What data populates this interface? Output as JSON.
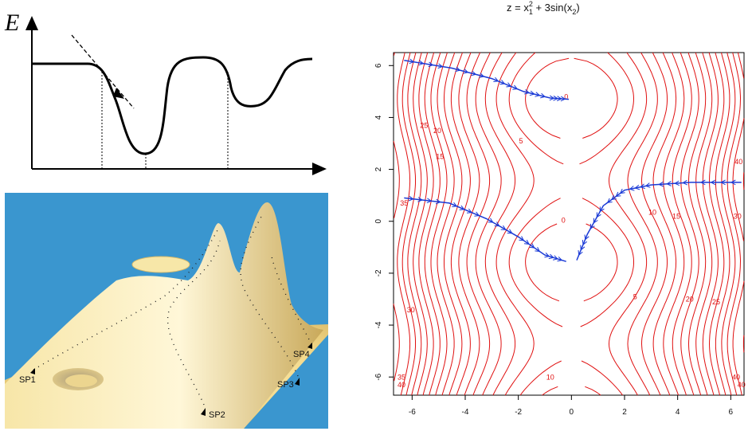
{
  "energy_diagram": {
    "axis_label": "E"
  },
  "landscape_diagram": {
    "saddle_points": [
      "SP1",
      "SP2",
      "SP3",
      "SP4"
    ],
    "colors": {
      "background": "#3a96cf",
      "surface": "#f3d98a"
    }
  },
  "contour_plot": {
    "title_main": "z = x",
    "title_sub1": "1",
    "title_sup": "2",
    "title_mid": " + 3sin(x",
    "title_sub2": "2",
    "title_end": ")",
    "x_ticks": [
      "-6",
      "-4",
      "-2",
      "0",
      "2",
      "4",
      "6"
    ],
    "y_ticks": [
      "6",
      "4",
      "2",
      "0",
      "-2",
      "-4",
      "-6"
    ],
    "contour_labels": [
      "0",
      "0",
      "5",
      "5",
      "10",
      "10",
      "15",
      "15",
      "20",
      "20",
      "25",
      "25",
      "30",
      "30",
      "35",
      "35",
      "40",
      "40",
      "40",
      "40"
    ],
    "colors": {
      "contours": "#e01010",
      "paths": "#1a3ad6"
    }
  }
}
